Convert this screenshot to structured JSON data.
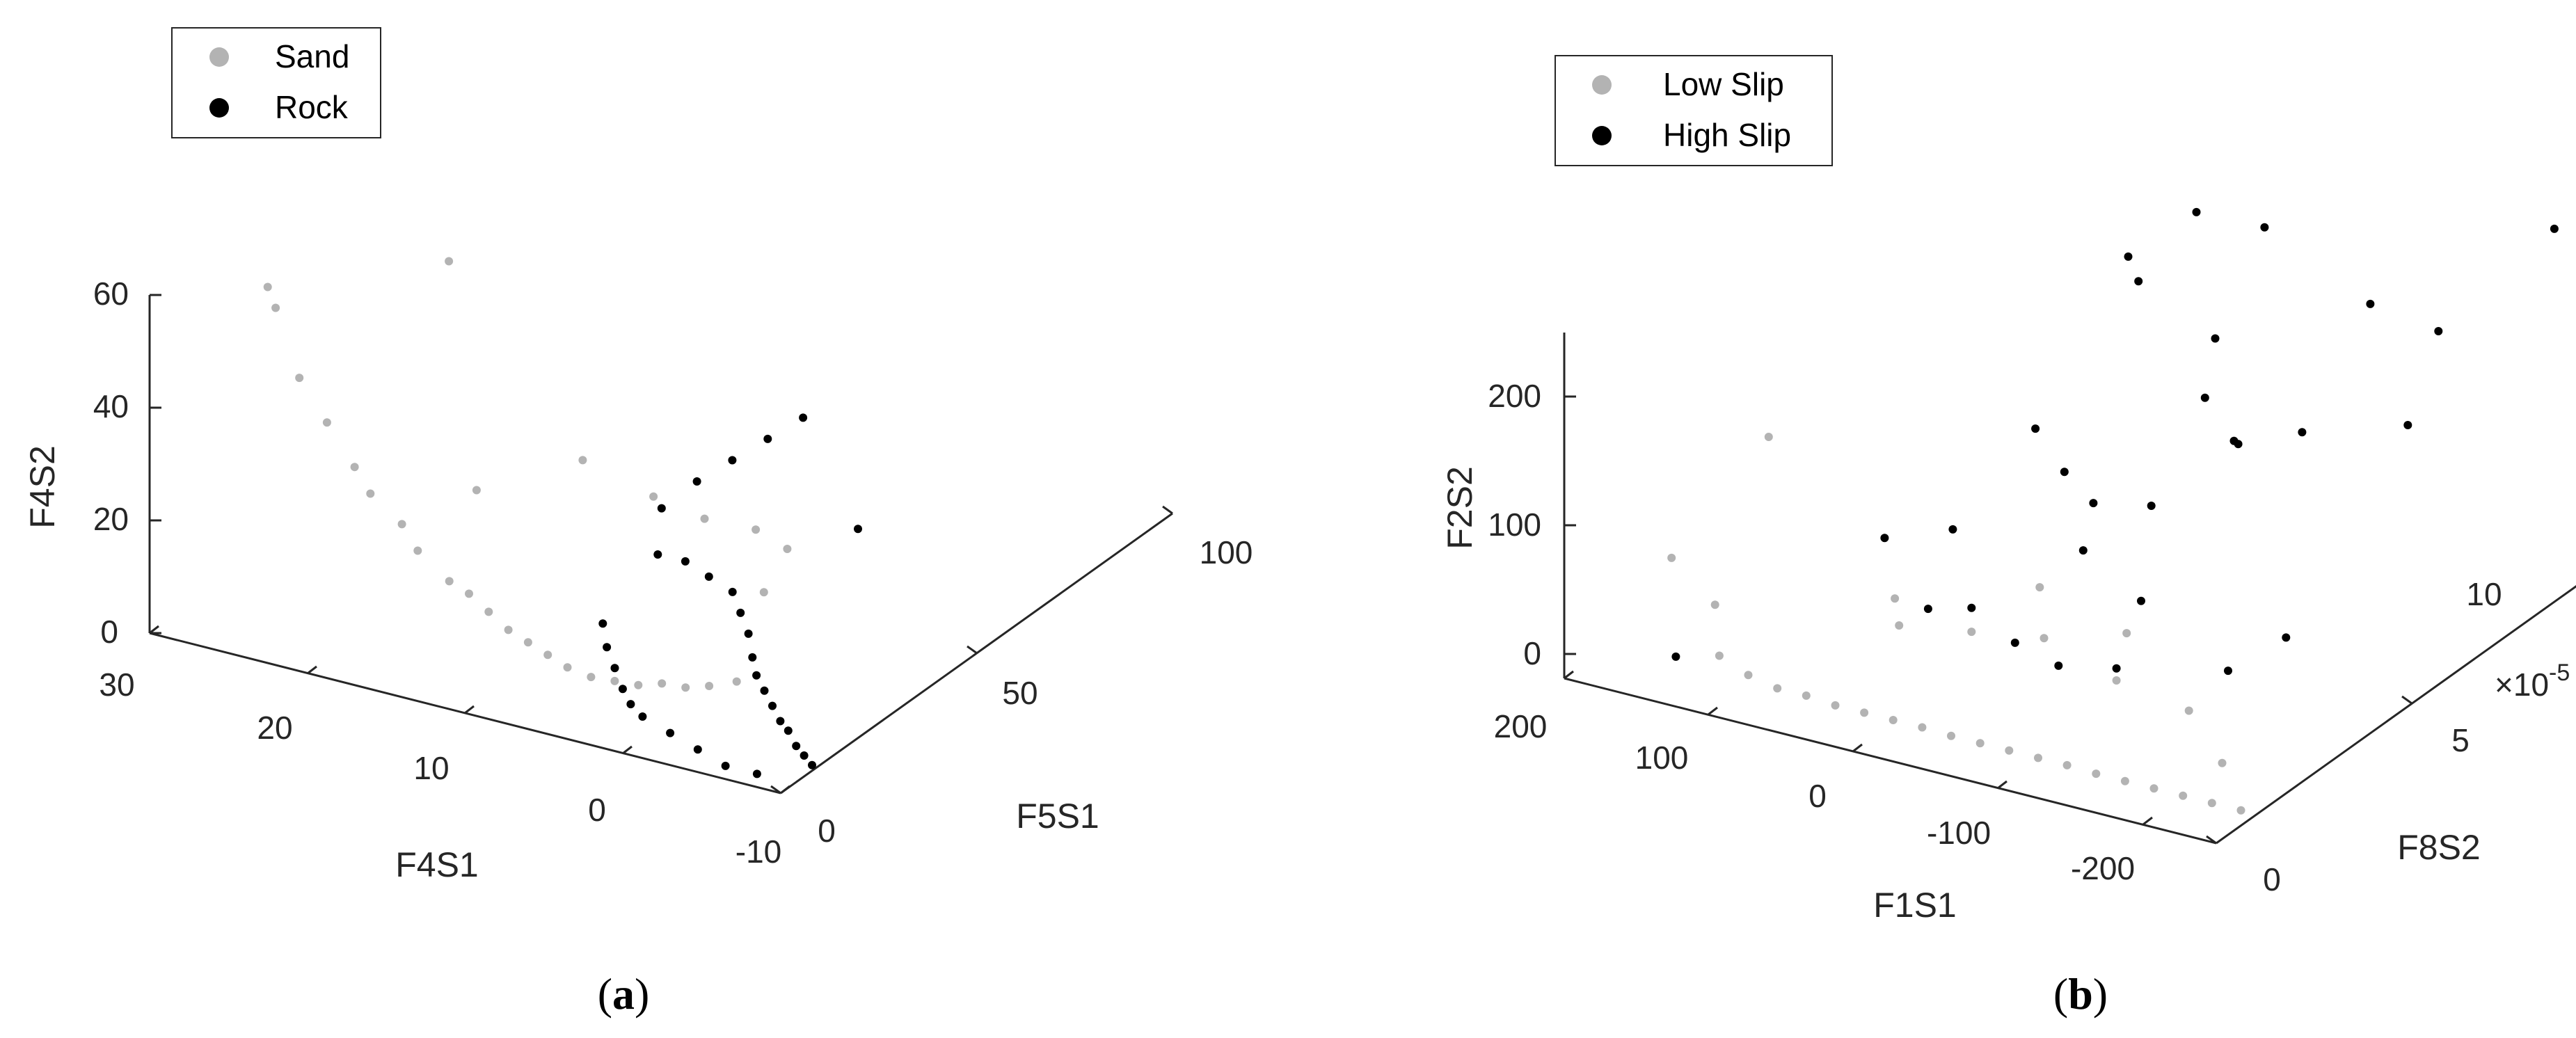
{
  "panels": [
    {
      "caption_letter": "a",
      "legend": [
        {
          "name": "Sand",
          "color": "#b3b3b3"
        },
        {
          "name": "Rock",
          "color": "#000000"
        }
      ]
    },
    {
      "caption_letter": "b",
      "legend": [
        {
          "name": "Low Slip",
          "color": "#b3b3b3"
        },
        {
          "name": "High Slip",
          "color": "#000000"
        }
      ]
    }
  ],
  "chart_data": [
    {
      "type": "scatter",
      "projection": "3d",
      "xlabel": "F4S1",
      "ylabel": "F5S1",
      "zlabel": "F4S2",
      "xlim": [
        -10,
        30
      ],
      "ylim": [
        0,
        100
      ],
      "zlim": [
        0,
        60
      ],
      "xticks": [
        "30",
        "20",
        "10",
        "0",
        "-10"
      ],
      "yticks": [
        "0",
        "50",
        "100"
      ],
      "zticks": [
        "0",
        "20",
        "40",
        "60"
      ],
      "legend_position": "top-left",
      "series": [
        {
          "name": "Sand",
          "color": "#b3b3b3",
          "points": [
            [
              25,
              10,
              60
            ],
            [
              24,
              8,
              58
            ],
            [
              22,
              6,
              48
            ],
            [
              20,
              5,
              42
            ],
            [
              18,
              4,
              36
            ],
            [
              17,
              4,
              32
            ],
            [
              15,
              4,
              28
            ],
            [
              14,
              4,
              24
            ],
            [
              12,
              4,
              20
            ],
            [
              11,
              5,
              18
            ],
            [
              10,
              6,
              15
            ],
            [
              9,
              7,
              12
            ],
            [
              8,
              8,
              10
            ],
            [
              7,
              9,
              8
            ],
            [
              6,
              10,
              6
            ],
            [
              5,
              12,
              4
            ],
            [
              4,
              14,
              3
            ],
            [
              3,
              16,
              2
            ],
            [
              2,
              18,
              2
            ],
            [
              1,
              20,
              1
            ],
            [
              0,
              22,
              1
            ],
            [
              -1,
              25,
              1
            ],
            [
              16,
              20,
              66
            ],
            [
              13,
              15,
              30
            ],
            [
              10,
              30,
              30
            ],
            [
              8,
              40,
              20
            ],
            [
              6,
              45,
              15
            ],
            [
              4,
              50,
              12
            ],
            [
              2,
              50,
              10
            ],
            [
              1,
              40,
              8
            ]
          ]
        },
        {
          "name": "Rock",
          "color": "#000000",
          "points": [
            [
              5,
              30,
              25
            ],
            [
              4,
              35,
              28
            ],
            [
              3,
              40,
              30
            ],
            [
              2,
              45,
              32
            ],
            [
              1,
              50,
              34
            ],
            [
              4,
              25,
              20
            ],
            [
              3,
              28,
              18
            ],
            [
              2,
              30,
              15
            ],
            [
              1,
              32,
              12
            ],
            [
              0,
              30,
              10
            ],
            [
              -1,
              28,
              8
            ],
            [
              -2,
              25,
              6
            ],
            [
              -3,
              22,
              5
            ],
            [
              -4,
              20,
              4
            ],
            [
              -5,
              18,
              3
            ],
            [
              -6,
              16,
              2
            ],
            [
              -7,
              14,
              2
            ],
            [
              -8,
              12,
              1
            ],
            [
              -9,
              10,
              1
            ],
            [
              -10,
              8,
              1
            ],
            [
              5,
              15,
              12
            ],
            [
              4,
              12,
              10
            ],
            [
              3,
              10,
              8
            ],
            [
              2,
              8,
              6
            ],
            [
              1,
              6,
              5
            ],
            [
              0,
              5,
              4
            ],
            [
              -2,
              4,
              3
            ],
            [
              -4,
              3,
              2
            ],
            [
              -6,
              2,
              1
            ],
            [
              -8,
              2,
              1
            ],
            [
              0,
              60,
              10
            ]
          ]
        }
      ]
    },
    {
      "type": "scatter",
      "projection": "3d",
      "xlabel": "F1S1",
      "ylabel": "F8S2",
      "zlabel": "F2S2",
      "xlim": [
        -250,
        200
      ],
      "ylim": [
        0,
        10
      ],
      "zlim": [
        0,
        250
      ],
      "xticks": [
        "200",
        "100",
        "0",
        "-100",
        "-200"
      ],
      "yticks": [
        "0",
        "5",
        "10"
      ],
      "zticks": [
        "0",
        "100",
        "200"
      ],
      "y_multiplier": "×10",
      "y_multiplier_exp": "-5",
      "legend_position": "top-left",
      "series": [
        {
          "name": "Low Slip",
          "color": "#b3b3b3",
          "points": [
            [
              150,
              2,
              30
            ],
            [
              120,
              1,
              20
            ],
            [
              100,
              1,
              10
            ],
            [
              80,
              1,
              5
            ],
            [
              60,
              1,
              5
            ],
            [
              40,
              1,
              3
            ],
            [
              20,
              1,
              3
            ],
            [
              0,
              1,
              3
            ],
            [
              -20,
              1,
              3
            ],
            [
              -40,
              1,
              2
            ],
            [
              -60,
              1,
              2
            ],
            [
              -80,
              1,
              2
            ],
            [
              -100,
              1,
              2
            ],
            [
              -120,
              1,
              2
            ],
            [
              -140,
              1,
              1
            ],
            [
              -160,
              1,
              1
            ],
            [
              -180,
              1,
              1
            ],
            [
              -200,
              1,
              1
            ],
            [
              -220,
              1,
              1
            ],
            [
              -240,
              1,
              1
            ],
            [
              50,
              3,
              20
            ],
            [
              0,
              3,
              30
            ],
            [
              -50,
              3,
              40
            ],
            [
              -100,
              3,
              20
            ],
            [
              -150,
              3,
              10
            ],
            [
              -200,
              2,
              5
            ],
            [
              80,
              4,
              10
            ],
            [
              -20,
              4,
              50
            ],
            [
              -80,
              4,
              30
            ],
            [
              180,
              2,
              60
            ],
            [
              140,
              3,
              150
            ]
          ]
        },
        {
          "name": "High Slip",
          "color": "#000000",
          "points": [
            [
              20,
              8,
              200
            ],
            [
              0,
              7,
              250
            ],
            [
              -20,
              8,
              270
            ],
            [
              -40,
              9,
              240
            ],
            [
              -60,
              7,
              200
            ],
            [
              -80,
              6,
              180
            ],
            [
              -100,
              6,
              150
            ],
            [
              -120,
              7,
              140
            ],
            [
              -140,
              8,
              230
            ],
            [
              -160,
              9,
              190
            ],
            [
              10,
              5,
              150
            ],
            [
              -10,
              5,
              120
            ],
            [
              -30,
              5,
              100
            ],
            [
              -50,
              4,
              90
            ],
            [
              -70,
              5,
              110
            ],
            [
              -90,
              4,
              60
            ],
            [
              40,
              4,
              80
            ],
            [
              60,
              3,
              90
            ],
            [
              30,
              3,
              40
            ],
            [
              0,
              3,
              50
            ],
            [
              -30,
              3,
              30
            ],
            [
              -60,
              3,
              20
            ],
            [
              -100,
              3,
              30
            ],
            [
              -150,
              4,
              20
            ],
            [
              -190,
              4,
              60
            ],
            [
              -220,
              6,
              200
            ],
            [
              -240,
              9,
              300
            ],
            [
              150,
              1,
              10
            ],
            [
              -130,
              5,
              180
            ]
          ]
        }
      ]
    }
  ]
}
